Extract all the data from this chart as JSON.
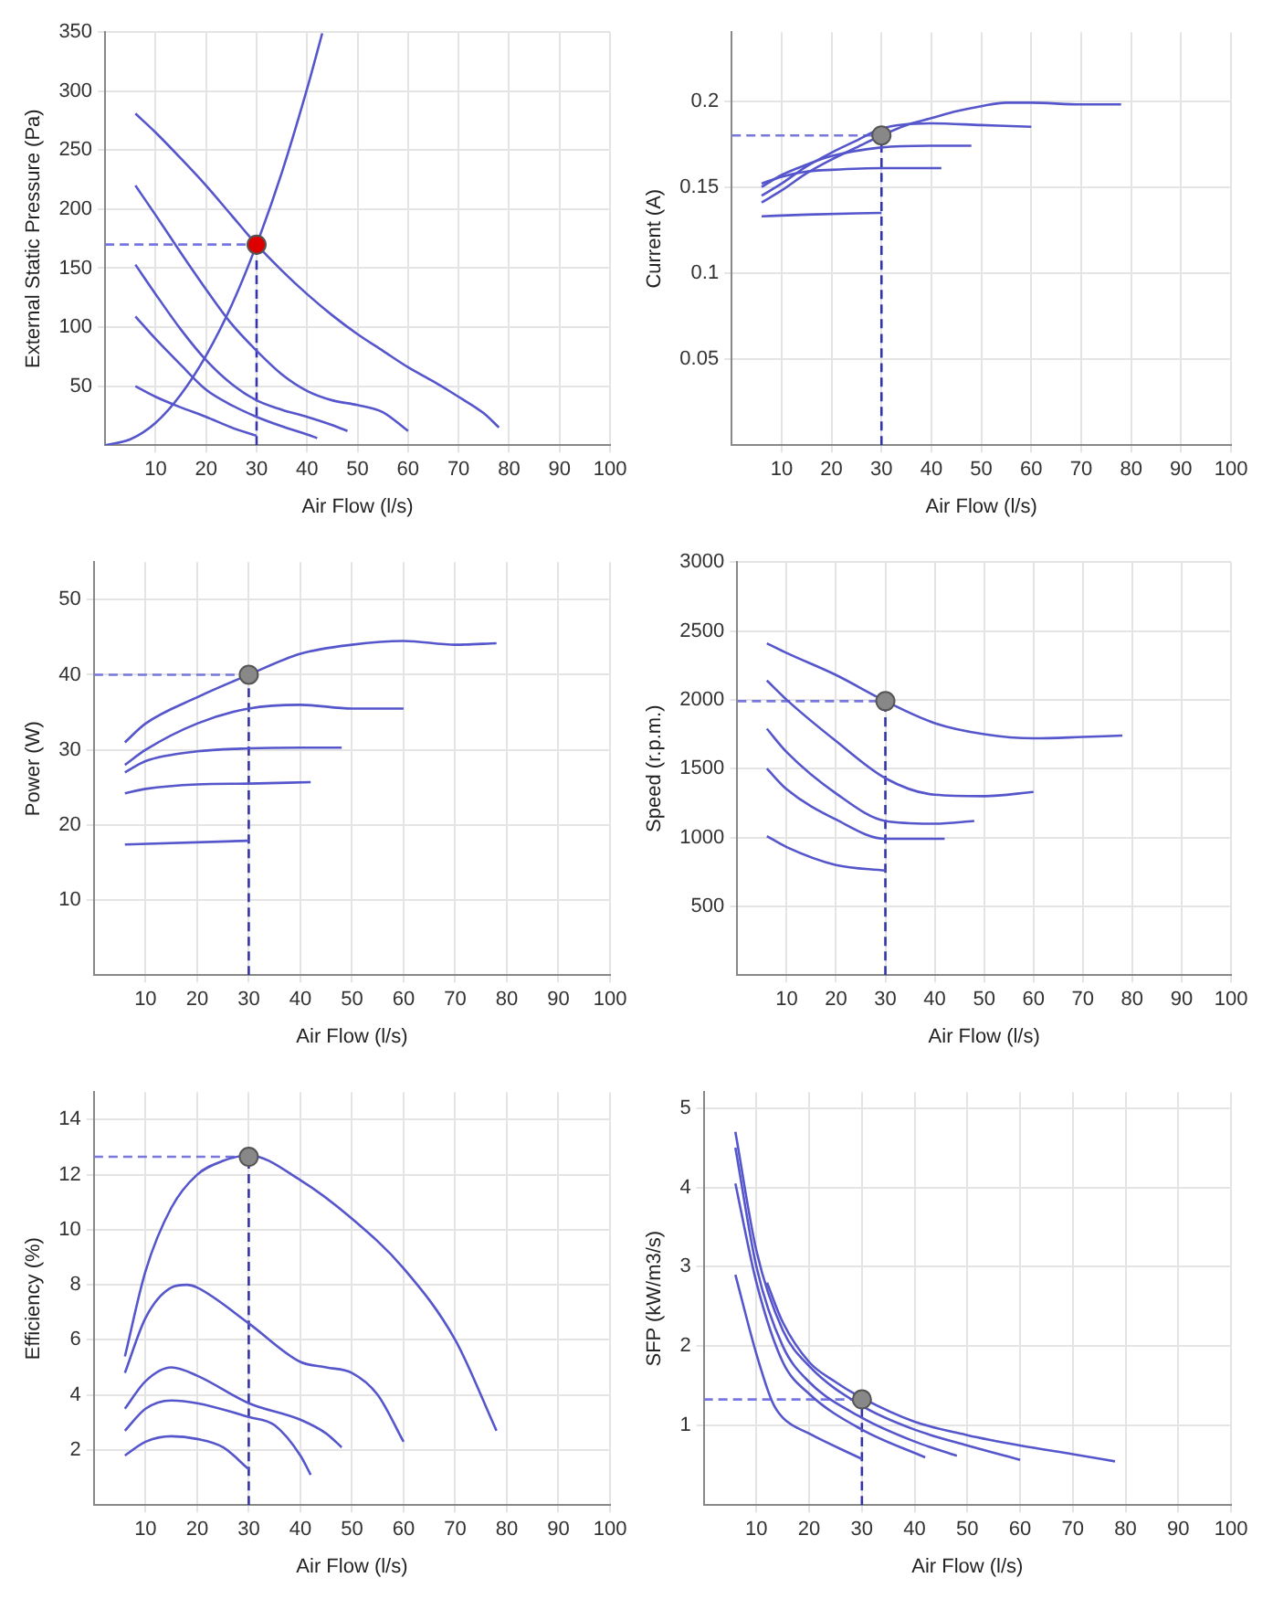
{
  "chart_data": [
    {
      "type": "line",
      "xlabel": "Air Flow (l/s)",
      "ylabel": "External Static Pressure (Pa)",
      "xlim": [
        0,
        100
      ],
      "xticks": [
        10,
        20,
        30,
        40,
        50,
        60,
        70,
        80,
        90,
        100
      ],
      "ylim": [
        0,
        350
      ],
      "yticks": [
        50,
        100,
        150,
        200,
        250,
        300,
        350
      ],
      "grid": true,
      "marker": "none",
      "series": [
        {
          "color": "#5555cc",
          "x": [
            0,
            5,
            10,
            15,
            20,
            25,
            30,
            35,
            40,
            43
          ],
          "values": [
            0,
            5,
            19,
            43,
            76,
            118,
            170,
            231,
            302,
            349
          ]
        },
        {
          "color": "#5555cc",
          "x": [
            6,
            10,
            15,
            20,
            25,
            30,
            35,
            40,
            45,
            50,
            55,
            60,
            65,
            70,
            75,
            78
          ],
          "values": [
            281,
            265,
            243,
            220,
            195,
            170,
            148,
            128,
            110,
            94,
            80,
            66,
            54,
            41,
            27,
            15
          ]
        },
        {
          "color": "#5555cc",
          "x": [
            6,
            10,
            15,
            20,
            25,
            30,
            35,
            40,
            45,
            50,
            55,
            60
          ],
          "values": [
            220,
            195,
            163,
            132,
            103,
            80,
            60,
            46,
            38,
            34,
            28,
            12
          ]
        },
        {
          "color": "#5555cc",
          "x": [
            6,
            10,
            15,
            20,
            25,
            30,
            35,
            40,
            45,
            48
          ],
          "values": [
            153,
            128,
            98,
            72,
            52,
            38,
            30,
            24,
            17,
            12
          ]
        },
        {
          "color": "#5555cc",
          "x": [
            6,
            10,
            15,
            20,
            25,
            30,
            35,
            40,
            42
          ],
          "values": [
            109,
            90,
            68,
            47,
            34,
            24,
            16,
            9,
            6
          ]
        },
        {
          "color": "#5555cc",
          "x": [
            6,
            10,
            15,
            20,
            25,
            30
          ],
          "values": [
            50,
            41,
            32,
            24,
            15,
            8
          ]
        },
        {
          "type": "line",
          "line_style": "dashed",
          "color": "#7777dd",
          "x": [
            0,
            30
          ],
          "values": [
            170,
            170
          ]
        },
        {
          "type": "line",
          "line_style": "dashed",
          "color": "#3333aa",
          "x": [
            30,
            30
          ],
          "values": [
            0,
            170
          ]
        },
        {
          "type": "scatter",
          "marker": "circle",
          "color": "#dd0000",
          "x": [
            30
          ],
          "values": [
            170
          ]
        }
      ]
    },
    {
      "type": "line",
      "xlabel": "Air Flow (l/s)",
      "ylabel": "Current (A)",
      "xlim": [
        0,
        100
      ],
      "xticks": [
        10,
        20,
        30,
        40,
        50,
        60,
        70,
        80,
        90,
        100
      ],
      "ylim": [
        0,
        0.24
      ],
      "yticks": [
        0.05,
        0.1,
        0.15,
        0.2
      ],
      "grid": true,
      "marker": "none",
      "series": [
        {
          "color": "#5555cc",
          "x": [
            6,
            10,
            15,
            20,
            25,
            30,
            35,
            40,
            45,
            50,
            55,
            60,
            70,
            78
          ],
          "values": [
            0.141,
            0.148,
            0.158,
            0.166,
            0.173,
            0.18,
            0.186,
            0.19,
            0.194,
            0.197,
            0.199,
            0.199,
            0.198,
            0.198
          ]
        },
        {
          "color": "#5555cc",
          "x": [
            6,
            10,
            15,
            20,
            25,
            30,
            40,
            50,
            60
          ],
          "values": [
            0.145,
            0.152,
            0.162,
            0.17,
            0.177,
            0.184,
            0.187,
            0.186,
            0.185
          ]
        },
        {
          "color": "#5555cc",
          "x": [
            6,
            10,
            15,
            20,
            30,
            40,
            48
          ],
          "values": [
            0.15,
            0.157,
            0.163,
            0.168,
            0.173,
            0.174,
            0.174
          ]
        },
        {
          "color": "#5555cc",
          "x": [
            6,
            10,
            15,
            20,
            30,
            42
          ],
          "values": [
            0.152,
            0.156,
            0.159,
            0.16,
            0.161,
            0.161
          ]
        },
        {
          "color": "#5555cc",
          "x": [
            6,
            15,
            30
          ],
          "values": [
            0.133,
            0.134,
            0.135
          ]
        },
        {
          "type": "line",
          "line_style": "dashed",
          "color": "#7777dd",
          "x": [
            0,
            30
          ],
          "values": [
            0.18,
            0.18
          ]
        },
        {
          "type": "line",
          "line_style": "dashed",
          "color": "#3333aa",
          "x": [
            30,
            30
          ],
          "values": [
            0,
            0.18
          ]
        },
        {
          "type": "scatter",
          "marker": "circle",
          "color": "#888888",
          "x": [
            30
          ],
          "values": [
            0.18
          ]
        }
      ]
    },
    {
      "type": "line",
      "xlabel": "Air Flow (l/s)",
      "ylabel": "Power (W)",
      "xlim": [
        0,
        100
      ],
      "xticks": [
        10,
        20,
        30,
        40,
        50,
        60,
        70,
        80,
        90,
        100
      ],
      "ylim": [
        0,
        55
      ],
      "yticks": [
        10,
        20,
        30,
        40,
        50
      ],
      "grid": true,
      "marker": "none",
      "series": [
        {
          "color": "#5555cc",
          "x": [
            6,
            10,
            20,
            30,
            40,
            50,
            60,
            70,
            78
          ],
          "values": [
            31,
            33.5,
            37,
            40,
            42.8,
            44,
            44.5,
            44,
            44.2
          ]
        },
        {
          "color": "#5555cc",
          "x": [
            6,
            10,
            20,
            30,
            40,
            50,
            60
          ],
          "values": [
            28,
            30,
            33.5,
            35.5,
            36,
            35.5,
            35.5
          ]
        },
        {
          "color": "#5555cc",
          "x": [
            6,
            10,
            20,
            30,
            40,
            48
          ],
          "values": [
            27,
            28.5,
            29.8,
            30.2,
            30.3,
            30.3
          ]
        },
        {
          "color": "#5555cc",
          "x": [
            6,
            10,
            20,
            30,
            42
          ],
          "values": [
            24.2,
            24.8,
            25.4,
            25.5,
            25.7
          ]
        },
        {
          "color": "#5555cc",
          "x": [
            6,
            30
          ],
          "values": [
            17.4,
            17.9
          ]
        },
        {
          "type": "line",
          "line_style": "dashed",
          "color": "#7777dd",
          "x": [
            0,
            30
          ],
          "values": [
            40,
            40
          ]
        },
        {
          "type": "line",
          "line_style": "dashed",
          "color": "#3333aa",
          "x": [
            30,
            30
          ],
          "values": [
            0,
            40
          ]
        },
        {
          "type": "scatter",
          "marker": "circle",
          "color": "#888888",
          "x": [
            30
          ],
          "values": [
            40
          ]
        }
      ]
    },
    {
      "type": "line",
      "xlabel": "Air Flow (l/s)",
      "ylabel": "Speed (r.p.m.)",
      "xlim": [
        0,
        100
      ],
      "xticks": [
        10,
        20,
        30,
        40,
        50,
        60,
        70,
        80,
        90,
        100
      ],
      "ylim": [
        0,
        3000
      ],
      "yticks": [
        500,
        1000,
        1500,
        2000,
        2500,
        3000
      ],
      "grid": true,
      "marker": "none",
      "series": [
        {
          "color": "#5555cc",
          "x": [
            6,
            10,
            20,
            30,
            40,
            50,
            60,
            70,
            78
          ],
          "values": [
            2410,
            2340,
            2180,
            1990,
            1830,
            1750,
            1720,
            1730,
            1740
          ]
        },
        {
          "color": "#5555cc",
          "x": [
            6,
            10,
            20,
            30,
            40,
            50,
            60
          ],
          "values": [
            2140,
            2000,
            1700,
            1430,
            1310,
            1300,
            1330
          ]
        },
        {
          "color": "#5555cc",
          "x": [
            6,
            10,
            20,
            30,
            40,
            48
          ],
          "values": [
            1790,
            1620,
            1320,
            1120,
            1100,
            1120
          ]
        },
        {
          "color": "#5555cc",
          "x": [
            6,
            10,
            20,
            30,
            42
          ],
          "values": [
            1500,
            1350,
            1130,
            990,
            990
          ]
        },
        {
          "color": "#5555cc",
          "x": [
            6,
            10,
            20,
            30
          ],
          "values": [
            1010,
            930,
            800,
            760
          ]
        },
        {
          "type": "line",
          "line_style": "dashed",
          "color": "#7777dd",
          "x": [
            0,
            30
          ],
          "values": [
            1990,
            1990
          ]
        },
        {
          "type": "line",
          "line_style": "dashed",
          "color": "#3333aa",
          "x": [
            30,
            30
          ],
          "values": [
            0,
            1990
          ]
        },
        {
          "type": "scatter",
          "marker": "circle",
          "color": "#888888",
          "x": [
            30
          ],
          "values": [
            1990
          ]
        }
      ]
    },
    {
      "type": "line",
      "xlabel": "Air Flow (l/s)",
      "ylabel": "Efficiency (%)",
      "xlim": [
        0,
        100
      ],
      "xticks": [
        10,
        20,
        30,
        40,
        50,
        60,
        70,
        80,
        90,
        100
      ],
      "ylim": [
        0,
        15
      ],
      "yticks": [
        2,
        4,
        6,
        8,
        10,
        12,
        14
      ],
      "grid": true,
      "marker": "none",
      "series": [
        {
          "color": "#5555cc",
          "x": [
            6,
            10,
            15,
            20,
            25,
            30,
            40,
            50,
            60,
            70,
            78
          ],
          "values": [
            5.4,
            8.5,
            10.8,
            12,
            12.5,
            12.7,
            11.8,
            10.4,
            8.6,
            6,
            2.7
          ]
        },
        {
          "color": "#5555cc",
          "x": [
            6,
            10,
            15,
            18,
            20,
            30,
            40,
            45,
            50,
            55,
            60
          ],
          "values": [
            4.8,
            6.8,
            7.9,
            8,
            7.9,
            6.6,
            5.2,
            5,
            4.8,
            4,
            2.3
          ]
        },
        {
          "color": "#5555cc",
          "x": [
            6,
            10,
            15,
            20,
            30,
            40,
            45,
            48
          ],
          "values": [
            3.5,
            4.5,
            5,
            4.7,
            3.7,
            3.1,
            2.6,
            2.1
          ]
        },
        {
          "color": "#5555cc",
          "x": [
            6,
            10,
            15,
            20,
            30,
            35,
            40,
            42
          ],
          "values": [
            2.7,
            3.5,
            3.8,
            3.7,
            3.2,
            2.9,
            1.8,
            1.1
          ]
        },
        {
          "color": "#5555cc",
          "x": [
            6,
            10,
            15,
            20,
            25,
            30
          ],
          "values": [
            1.8,
            2.3,
            2.5,
            2.4,
            2.1,
            1.3
          ]
        },
        {
          "type": "line",
          "line_style": "dashed",
          "color": "#7777dd",
          "x": [
            0,
            30
          ],
          "values": [
            12.65,
            12.65
          ]
        },
        {
          "type": "line",
          "line_style": "dashed",
          "color": "#3333aa",
          "x": [
            30,
            30
          ],
          "values": [
            0,
            12.65
          ]
        },
        {
          "type": "scatter",
          "marker": "circle",
          "color": "#888888",
          "x": [
            30
          ],
          "values": [
            12.65
          ]
        }
      ]
    },
    {
      "type": "line",
      "xlabel": "Air Flow (l/s)",
      "ylabel": "SFP (kW/m3/s)",
      "xlim": [
        0,
        100
      ],
      "xticks": [
        10,
        20,
        30,
        40,
        50,
        60,
        70,
        80,
        90,
        100
      ],
      "ylim": [
        0,
        5.2
      ],
      "yticks": [
        1,
        2,
        3,
        4,
        5
      ],
      "grid": true,
      "marker": "none",
      "series": [
        {
          "color": "#5555cc",
          "x": [
            12,
            15,
            20,
            25,
            30,
            40,
            50,
            60,
            70,
            78
          ],
          "values": [
            2.8,
            2.3,
            1.8,
            1.55,
            1.35,
            1.05,
            0.88,
            0.75,
            0.64,
            0.55
          ]
        },
        {
          "color": "#5555cc",
          "x": [
            6,
            10,
            15,
            20,
            30,
            40,
            50,
            60
          ],
          "values": [
            4.7,
            3.2,
            2.2,
            1.75,
            1.25,
            0.95,
            0.75,
            0.57
          ]
        },
        {
          "color": "#5555cc",
          "x": [
            6,
            10,
            15,
            20,
            30,
            40,
            48
          ],
          "values": [
            4.5,
            3,
            2,
            1.55,
            1.1,
            0.8,
            0.62
          ]
        },
        {
          "color": "#5555cc",
          "x": [
            6,
            10,
            15,
            20,
            30,
            42
          ],
          "values": [
            4.05,
            2.8,
            1.8,
            1.4,
            0.95,
            0.6
          ]
        },
        {
          "color": "#5555cc",
          "x": [
            6,
            10,
            13,
            15,
            20,
            30
          ],
          "values": [
            2.9,
            1.9,
            1.3,
            1.1,
            0.9,
            0.58
          ]
        },
        {
          "type": "line",
          "line_style": "dashed",
          "color": "#7777dd",
          "x": [
            0,
            30
          ],
          "values": [
            1.33,
            1.33
          ]
        },
        {
          "type": "line",
          "line_style": "dashed",
          "color": "#3333aa",
          "x": [
            30,
            30
          ],
          "values": [
            0,
            1.33
          ]
        },
        {
          "type": "scatter",
          "marker": "circle",
          "color": "#888888",
          "x": [
            30
          ],
          "values": [
            1.33
          ]
        }
      ]
    }
  ]
}
